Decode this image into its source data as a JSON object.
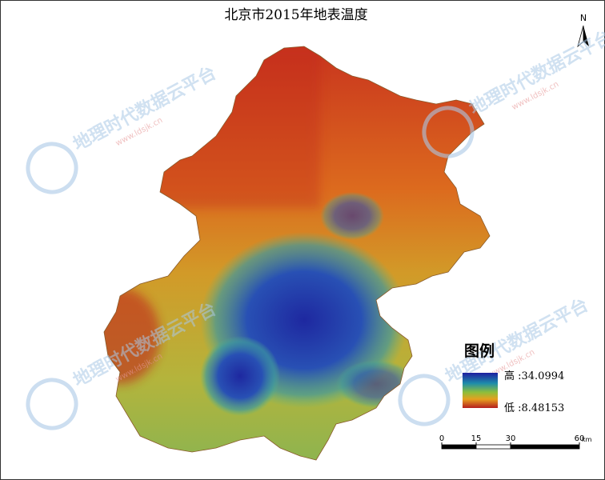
{
  "header": {
    "title": "北京市2015年地表温度"
  },
  "north_arrow": {
    "label": "N"
  },
  "legend": {
    "title": "图例",
    "high": "高 :34.0994",
    "low": "低 :8.48153"
  },
  "scale_bar": {
    "ticks": [
      0,
      15,
      30,
      60
    ],
    "unit": "km"
  },
  "watermarks": [
    {
      "text": "地理时代数据云平台",
      "url": "www.ldsjk.cn"
    },
    {
      "text": "地理时代数据云平台",
      "url": "www.ldsjk.cn"
    },
    {
      "text": "地理时代数据云平台",
      "url": "www.ldsjk.cn"
    },
    {
      "text": "地理时代数据云平台",
      "url": "www.ldsjk.cn"
    }
  ]
}
